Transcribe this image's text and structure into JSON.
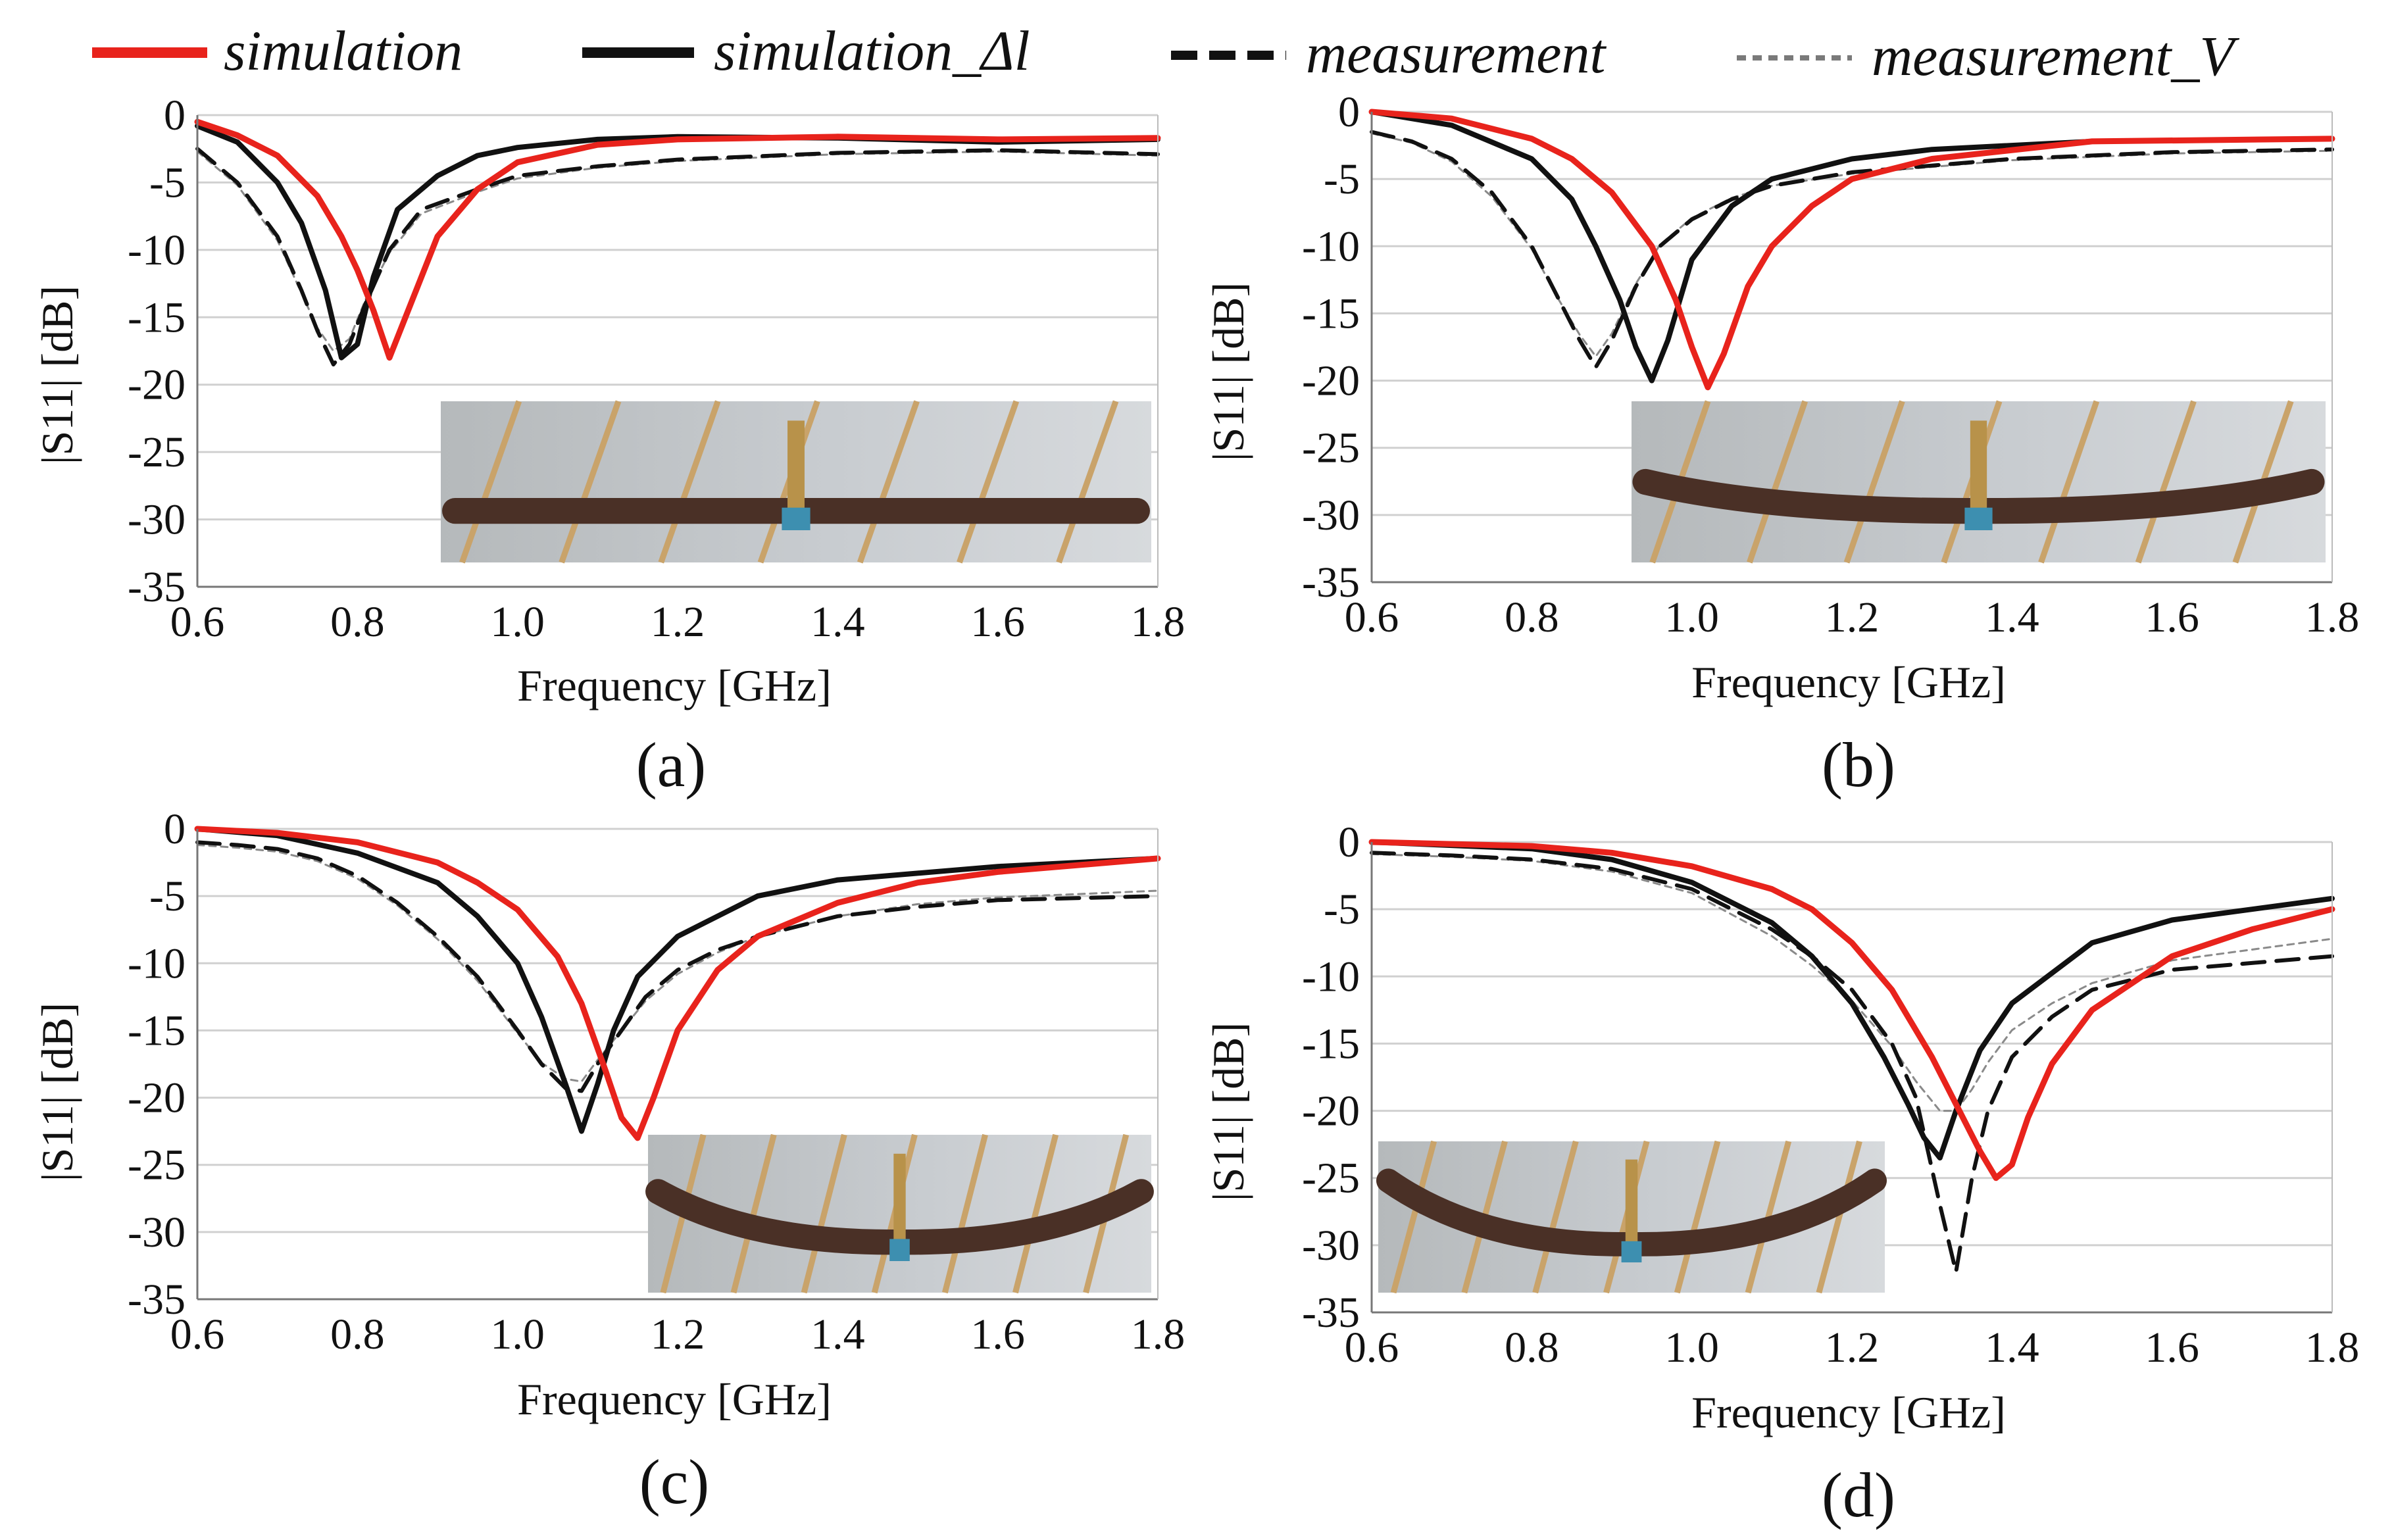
{
  "legend": [
    {
      "label": "simulation",
      "color": "#e8231c",
      "dash": "solid"
    },
    {
      "label": "simulation_Δl",
      "color": "#111111",
      "dash": "solid"
    },
    {
      "label": "measurement",
      "color": "#111111",
      "dash": "dashed"
    },
    {
      "label": "measurement_V",
      "color": "#7a7a7a",
      "dash": "dotted"
    }
  ],
  "colors": {
    "simulation": "#e8231c",
    "simulation_dl": "#111111",
    "measurement": "#111111",
    "measurement_v": "#8a8a8a",
    "grid": "#d0d0d0"
  },
  "chart_data": [
    {
      "panel": "(a)",
      "type": "line",
      "xlabel": "Frequency [GHz]",
      "ylabel": "|S11| [dB]",
      "xlim": [
        0.6,
        1.8
      ],
      "ylim": [
        -35,
        0
      ],
      "xticks": [
        "0.6",
        "0.8",
        "1.0",
        "1.2",
        "1.4",
        "1.6",
        "1.8"
      ],
      "yticks": [
        "0",
        "-5",
        "-10",
        "-15",
        "-20",
        "-25",
        "-30",
        "-35"
      ],
      "inset_photo": "antenna on bamboo sticks (flat)",
      "series": [
        {
          "name": "simulation",
          "x": [
            0.6,
            0.65,
            0.7,
            0.75,
            0.78,
            0.8,
            0.82,
            0.84,
            0.86,
            0.9,
            0.95,
            1.0,
            1.1,
            1.2,
            1.4,
            1.6,
            1.8
          ],
          "y": [
            -0.5,
            -1.5,
            -3,
            -6,
            -9,
            -11.5,
            -14.5,
            -18,
            -15,
            -9,
            -5.5,
            -3.5,
            -2.2,
            -1.8,
            -1.6,
            -1.8,
            -1.7
          ]
        },
        {
          "name": "simulation_Δl",
          "x": [
            0.6,
            0.65,
            0.7,
            0.73,
            0.76,
            0.78,
            0.8,
            0.82,
            0.85,
            0.9,
            0.95,
            1.0,
            1.1,
            1.2,
            1.4,
            1.6,
            1.8
          ],
          "y": [
            -0.8,
            -2,
            -5,
            -8,
            -13,
            -18,
            -17,
            -12,
            -7,
            -4.5,
            -3,
            -2.4,
            -1.8,
            -1.6,
            -1.7,
            -2,
            -1.8
          ]
        },
        {
          "name": "measurement",
          "x": [
            0.6,
            0.65,
            0.7,
            0.73,
            0.75,
            0.77,
            0.79,
            0.81,
            0.84,
            0.88,
            0.95,
            1.0,
            1.1,
            1.2,
            1.4,
            1.6,
            1.8
          ],
          "y": [
            -2.5,
            -5,
            -9,
            -13,
            -16,
            -18.5,
            -17,
            -14,
            -10,
            -7,
            -5.5,
            -4.5,
            -3.8,
            -3.3,
            -2.8,
            -2.6,
            -2.9
          ]
        },
        {
          "name": "measurement_V",
          "x": [
            0.6,
            0.65,
            0.7,
            0.73,
            0.75,
            0.77,
            0.79,
            0.81,
            0.84,
            0.88,
            0.95,
            1.0,
            1.1,
            1.2,
            1.4,
            1.6,
            1.8
          ],
          "y": [
            -2.7,
            -5.2,
            -9.3,
            -13.2,
            -15.8,
            -17.5,
            -16.6,
            -13.7,
            -10.2,
            -7.3,
            -5.7,
            -4.7,
            -3.9,
            -3.4,
            -2.9,
            -2.7,
            -3.0
          ]
        }
      ]
    },
    {
      "panel": "(b)",
      "type": "line",
      "xlabel": "Frequency [GHz]",
      "ylabel": "|S11| [dB]",
      "xlim": [
        0.6,
        1.8
      ],
      "ylim": [
        -35,
        0
      ],
      "xticks": [
        "0.6",
        "0.8",
        "1.0",
        "1.2",
        "1.4",
        "1.6",
        "1.8"
      ],
      "yticks": [
        "0",
        "-5",
        "-10",
        "-15",
        "-20",
        "-25",
        "-30",
        "-35"
      ],
      "inset_photo": "antenna on bamboo sticks (slightly bent ends)",
      "series": [
        {
          "name": "simulation",
          "x": [
            0.6,
            0.7,
            0.8,
            0.85,
            0.9,
            0.95,
            0.98,
            1.0,
            1.02,
            1.04,
            1.07,
            1.1,
            1.15,
            1.2,
            1.3,
            1.5,
            1.8
          ],
          "y": [
            0,
            -0.5,
            -2,
            -3.5,
            -6,
            -10,
            -14,
            -17.5,
            -20.5,
            -18,
            -13,
            -10,
            -7,
            -5,
            -3.5,
            -2.2,
            -2
          ]
        },
        {
          "name": "simulation_Δl",
          "x": [
            0.6,
            0.7,
            0.8,
            0.85,
            0.88,
            0.91,
            0.93,
            0.95,
            0.97,
            1.0,
            1.05,
            1.1,
            1.2,
            1.3,
            1.5,
            1.8
          ],
          "y": [
            0,
            -1,
            -3.5,
            -6.5,
            -10,
            -14,
            -17.5,
            -20,
            -17,
            -11,
            -7,
            -5,
            -3.5,
            -2.8,
            -2.2,
            -2
          ]
        },
        {
          "name": "measurement",
          "x": [
            0.6,
            0.65,
            0.7,
            0.75,
            0.8,
            0.83,
            0.86,
            0.88,
            0.9,
            0.93,
            0.96,
            1.0,
            1.05,
            1.1,
            1.2,
            1.4,
            1.6,
            1.8
          ],
          "y": [
            -1.5,
            -2.2,
            -3.5,
            -6,
            -10,
            -13.5,
            -17,
            -19,
            -17,
            -13,
            -10,
            -8,
            -6.5,
            -5.5,
            -4.5,
            -3.5,
            -3,
            -2.8
          ]
        },
        {
          "name": "measurement_V",
          "x": [
            0.6,
            0.65,
            0.7,
            0.75,
            0.8,
            0.83,
            0.86,
            0.88,
            0.9,
            0.93,
            0.96,
            1.0,
            1.05,
            1.1,
            1.2,
            1.4,
            1.6,
            1.8
          ],
          "y": [
            -1.6,
            -2.3,
            -3.7,
            -6.3,
            -10.2,
            -13.6,
            -16.6,
            -18.2,
            -16.5,
            -12.8,
            -9.9,
            -7.9,
            -6.4,
            -5.5,
            -4.6,
            -3.6,
            -3.1,
            -2.9
          ]
        }
      ]
    },
    {
      "panel": "(c)",
      "type": "line",
      "xlabel": "Frequency [GHz]",
      "ylabel": "|S11| [dB]",
      "xlim": [
        0.6,
        1.8
      ],
      "ylim": [
        -35,
        0
      ],
      "xticks": [
        "0.6",
        "0.8",
        "1.0",
        "1.2",
        "1.4",
        "1.6",
        "1.8"
      ],
      "yticks": [
        "0",
        "-5",
        "-10",
        "-15",
        "-20",
        "-25",
        "-30",
        "-35"
      ],
      "inset_photo": "antenna on bamboo sticks (bent ends)",
      "series": [
        {
          "name": "simulation",
          "x": [
            0.6,
            0.7,
            0.8,
            0.9,
            0.95,
            1.0,
            1.05,
            1.08,
            1.11,
            1.13,
            1.15,
            1.17,
            1.2,
            1.25,
            1.3,
            1.4,
            1.5,
            1.6,
            1.8
          ],
          "y": [
            0,
            -0.3,
            -1,
            -2.5,
            -4,
            -6,
            -9.5,
            -13,
            -18,
            -21.5,
            -23,
            -20,
            -15,
            -10.5,
            -8,
            -5.5,
            -4,
            -3.2,
            -2.2
          ]
        },
        {
          "name": "simulation_Δl",
          "x": [
            0.6,
            0.7,
            0.8,
            0.9,
            0.95,
            1.0,
            1.03,
            1.06,
            1.08,
            1.1,
            1.12,
            1.15,
            1.2,
            1.3,
            1.4,
            1.6,
            1.8
          ],
          "y": [
            0,
            -0.5,
            -1.8,
            -4,
            -6.5,
            -10,
            -14,
            -19,
            -22.5,
            -19,
            -15,
            -11,
            -8,
            -5,
            -3.8,
            -2.8,
            -2.2
          ]
        },
        {
          "name": "measurement",
          "x": [
            0.6,
            0.65,
            0.7,
            0.75,
            0.8,
            0.85,
            0.9,
            0.95,
            1.0,
            1.03,
            1.06,
            1.08,
            1.1,
            1.13,
            1.16,
            1.2,
            1.25,
            1.3,
            1.4,
            1.5,
            1.6,
            1.8
          ],
          "y": [
            -1,
            -1.2,
            -1.5,
            -2.2,
            -3.5,
            -5.5,
            -8,
            -11,
            -15,
            -17.5,
            -19.3,
            -19.5,
            -17.5,
            -15,
            -12.5,
            -10.5,
            -9,
            -8,
            -6.5,
            -5.8,
            -5.3,
            -5
          ]
        },
        {
          "name": "measurement_V",
          "x": [
            0.6,
            0.65,
            0.7,
            0.75,
            0.8,
            0.85,
            0.9,
            0.95,
            1.0,
            1.03,
            1.06,
            1.08,
            1.1,
            1.13,
            1.16,
            1.2,
            1.25,
            1.3,
            1.4,
            1.5,
            1.6,
            1.8
          ],
          "y": [
            -1.2,
            -1.4,
            -1.7,
            -2.4,
            -3.7,
            -5.7,
            -8.2,
            -11.3,
            -15.2,
            -17.4,
            -18.6,
            -18.8,
            -17.2,
            -15,
            -12.8,
            -10.8,
            -9.2,
            -8,
            -6.5,
            -5.6,
            -5.1,
            -4.6
          ]
        }
      ]
    },
    {
      "panel": "(d)",
      "type": "line",
      "xlabel": "Frequency [GHz]",
      "ylabel": "|S11| [dB]",
      "xlim": [
        0.6,
        1.8
      ],
      "ylim": [
        -35,
        0
      ],
      "xticks": [
        "0.6",
        "0.8",
        "1.0",
        "1.2",
        "1.4",
        "1.6",
        "1.8"
      ],
      "yticks": [
        "0",
        "-5",
        "-10",
        "-15",
        "-20",
        "-25",
        "-30",
        "-35"
      ],
      "inset_photo": "antenna on bamboo sticks (strongly bent ends)",
      "series": [
        {
          "name": "simulation",
          "x": [
            0.6,
            0.8,
            0.9,
            1.0,
            1.1,
            1.15,
            1.2,
            1.25,
            1.3,
            1.33,
            1.36,
            1.38,
            1.4,
            1.42,
            1.45,
            1.5,
            1.6,
            1.7,
            1.8
          ],
          "y": [
            0,
            -0.3,
            -0.8,
            -1.8,
            -3.5,
            -5,
            -7.5,
            -11,
            -16,
            -19.5,
            -23,
            -25,
            -24,
            -20.5,
            -16.5,
            -12.5,
            -8.5,
            -6.5,
            -5
          ]
        },
        {
          "name": "simulation_Δl",
          "x": [
            0.6,
            0.8,
            0.9,
            1.0,
            1.1,
            1.15,
            1.2,
            1.24,
            1.27,
            1.29,
            1.31,
            1.33,
            1.36,
            1.4,
            1.5,
            1.6,
            1.8
          ],
          "y": [
            0,
            -0.5,
            -1.3,
            -3,
            -6,
            -8.5,
            -12,
            -16,
            -19.5,
            -22,
            -23.5,
            -20,
            -15.5,
            -12,
            -7.5,
            -5.8,
            -4.2
          ]
        },
        {
          "name": "measurement",
          "x": [
            0.6,
            0.7,
            0.8,
            0.9,
            1.0,
            1.1,
            1.15,
            1.2,
            1.25,
            1.28,
            1.31,
            1.33,
            1.35,
            1.37,
            1.4,
            1.45,
            1.5,
            1.6,
            1.8
          ],
          "y": [
            -0.8,
            -1,
            -1.3,
            -2,
            -3.5,
            -6.5,
            -8.5,
            -11,
            -15,
            -19,
            -27,
            -32,
            -25,
            -20,
            -16,
            -13,
            -11,
            -9.5,
            -8.5
          ]
        },
        {
          "name": "measurement_V",
          "x": [
            0.6,
            0.7,
            0.8,
            0.9,
            1.0,
            1.1,
            1.15,
            1.2,
            1.25,
            1.28,
            1.31,
            1.33,
            1.35,
            1.37,
            1.4,
            1.45,
            1.5,
            1.6,
            1.8
          ],
          "y": [
            -0.9,
            -1.1,
            -1.4,
            -2.2,
            -3.8,
            -7,
            -9.2,
            -11.8,
            -15.2,
            -17.8,
            -20,
            -20,
            -18.4,
            -16.4,
            -14,
            -12,
            -10.5,
            -8.8,
            -7.2
          ]
        }
      ]
    }
  ],
  "panel_labels": [
    "(a)",
    "(b)",
    "(c)",
    "(d)"
  ]
}
